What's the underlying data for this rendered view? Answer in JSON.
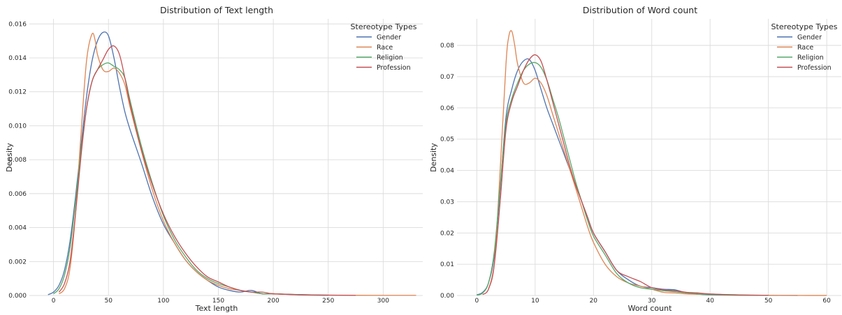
{
  "chart_data": [
    {
      "type": "line",
      "title": "Distribution of Text length",
      "xlabel": "Text length",
      "ylabel": "Density",
      "xlim": [
        -22,
        336
      ],
      "ylim": [
        0,
        0.0163
      ],
      "xticks": [
        0,
        50,
        100,
        150,
        200,
        250,
        300
      ],
      "xtick_labels": [
        "0",
        "50",
        "100",
        "150",
        "200",
        "250",
        "300"
      ],
      "yticks": [
        0,
        0.002,
        0.004,
        0.006,
        0.008,
        0.01,
        0.012,
        0.014,
        0.016
      ],
      "ytick_labels": [
        "0.000",
        "0.002",
        "0.004",
        "0.006",
        "0.008",
        "0.010",
        "0.012",
        "0.014",
        "0.016"
      ],
      "grid": true,
      "legend": {
        "title": "Stereotype Types",
        "placement": "top-right"
      },
      "series": [
        {
          "name": "Gender",
          "color": "#4c72b0",
          "x": [
            -5,
            0,
            5,
            10,
            15,
            20,
            25,
            30,
            35,
            40,
            45,
            50,
            55,
            60,
            65,
            70,
            80,
            90,
            100,
            110,
            120,
            130,
            140,
            150,
            160,
            170,
            180,
            190,
            200,
            225,
            250
          ],
          "y": [
            5e-05,
            0.0002,
            0.0006,
            0.0015,
            0.0032,
            0.0058,
            0.0088,
            0.0117,
            0.0138,
            0.015,
            0.0155,
            0.0153,
            0.014,
            0.0123,
            0.0108,
            0.0097,
            0.0078,
            0.0058,
            0.0042,
            0.0031,
            0.0021,
            0.0014,
            0.0009,
            0.0005,
            0.0003,
            0.0002,
            0.0003,
            0.0001,
            0.0001,
            3e-05,
            1e-05
          ]
        },
        {
          "name": "Race",
          "color": "#dd8452",
          "x": [
            5,
            10,
            15,
            20,
            25,
            30,
            35,
            38,
            40,
            45,
            50,
            55,
            60,
            65,
            70,
            80,
            90,
            100,
            110,
            120,
            130,
            140,
            150,
            160,
            170,
            180,
            190,
            200,
            225,
            250,
            300,
            330
          ],
          "y": [
            0.0001,
            0.0004,
            0.0016,
            0.0048,
            0.0095,
            0.0138,
            0.0154,
            0.015,
            0.0142,
            0.0133,
            0.0132,
            0.0134,
            0.0131,
            0.0124,
            0.011,
            0.0085,
            0.0062,
            0.0044,
            0.0031,
            0.0021,
            0.0014,
            0.0009,
            0.0006,
            0.0004,
            0.0003,
            0.0002,
            0.0001,
            0.0001,
            4e-05,
            2e-05,
            1e-05,
            1e-05
          ]
        },
        {
          "name": "Religion",
          "color": "#55a868",
          "x": [
            0,
            5,
            10,
            15,
            20,
            25,
            30,
            35,
            40,
            45,
            50,
            55,
            60,
            65,
            70,
            80,
            90,
            100,
            110,
            120,
            130,
            140,
            150,
            160,
            170,
            180,
            190,
            200,
            225,
            250
          ],
          "y": [
            0.0001,
            0.0004,
            0.0012,
            0.0028,
            0.0055,
            0.0085,
            0.011,
            0.0126,
            0.0133,
            0.0136,
            0.0137,
            0.0135,
            0.0133,
            0.0128,
            0.0114,
            0.0088,
            0.0066,
            0.0047,
            0.0033,
            0.0023,
            0.0015,
            0.001,
            0.0007,
            0.0005,
            0.0003,
            0.0002,
            0.0001,
            0.0001,
            5e-05,
            2e-05
          ]
        },
        {
          "name": "Profession",
          "color": "#c44e52",
          "x": [
            5,
            10,
            15,
            20,
            25,
            30,
            35,
            40,
            45,
            50,
            55,
            60,
            65,
            70,
            80,
            90,
            100,
            110,
            120,
            130,
            140,
            150,
            160,
            170,
            180,
            190,
            200,
            225,
            250,
            275
          ],
          "y": [
            0.0002,
            0.0007,
            0.002,
            0.0048,
            0.0082,
            0.011,
            0.0126,
            0.0133,
            0.0139,
            0.0145,
            0.0147,
            0.0142,
            0.0128,
            0.0112,
            0.0086,
            0.0065,
            0.0048,
            0.0035,
            0.0025,
            0.0017,
            0.0011,
            0.0008,
            0.0005,
            0.0003,
            0.0002,
            0.0002,
            0.0001,
            5e-05,
            2e-05,
            1e-05
          ]
        }
      ]
    },
    {
      "type": "line",
      "title": "Distribution of Word count",
      "xlabel": "Word count",
      "ylabel": "Density",
      "xlim": [
        -3.4,
        62.5
      ],
      "ylim": [
        0,
        0.0885
      ],
      "xticks": [
        0,
        10,
        20,
        30,
        40,
        50,
        60
      ],
      "xtick_labels": [
        "0",
        "10",
        "20",
        "30",
        "40",
        "50",
        "60"
      ],
      "yticks": [
        0,
        0.01,
        0.02,
        0.03,
        0.04,
        0.05,
        0.06,
        0.07,
        0.08
      ],
      "ytick_labels": [
        "0.00",
        "0.01",
        "0.02",
        "0.03",
        "0.04",
        "0.05",
        "0.06",
        "0.07",
        "0.08"
      ],
      "grid": true,
      "legend": {
        "title": "Stereotype Types",
        "placement": "top-right"
      },
      "series": [
        {
          "name": "Gender",
          "color": "#4c72b0",
          "x": [
            0,
            1,
            2,
            3,
            4,
            5,
            6,
            7,
            8,
            9,
            10,
            11,
            12,
            13,
            14,
            15,
            16,
            17,
            18,
            19,
            20,
            22,
            24,
            26,
            28,
            30,
            32,
            34,
            36,
            38,
            40,
            45,
            50,
            55
          ],
          "y": [
            0.0002,
            0.001,
            0.004,
            0.013,
            0.034,
            0.057,
            0.066,
            0.072,
            0.075,
            0.0755,
            0.072,
            0.066,
            0.06,
            0.055,
            0.05,
            0.045,
            0.04,
            0.035,
            0.03,
            0.025,
            0.02,
            0.014,
            0.008,
            0.005,
            0.003,
            0.0025,
            0.002,
            0.0018,
            0.0008,
            0.0004,
            0.0002,
            0.0001,
            5e-05,
            1e-05
          ]
        },
        {
          "name": "Race",
          "color": "#dd8452",
          "x": [
            2,
            3,
            4,
            5,
            5.5,
            6,
            6.5,
            7,
            8,
            9,
            10,
            11,
            12,
            13,
            14,
            15,
            16,
            17,
            18,
            19,
            20,
            22,
            24,
            26,
            28,
            30,
            32,
            34,
            36,
            38,
            40,
            45,
            50,
            55,
            60
          ],
          "y": [
            0.002,
            0.01,
            0.04,
            0.074,
            0.083,
            0.0845,
            0.08,
            0.074,
            0.068,
            0.068,
            0.0695,
            0.068,
            0.064,
            0.058,
            0.052,
            0.046,
            0.04,
            0.034,
            0.028,
            0.022,
            0.017,
            0.01,
            0.006,
            0.004,
            0.003,
            0.002,
            0.001,
            0.0008,
            0.0005,
            0.0004,
            0.0003,
            0.0001,
            5e-05,
            2e-05,
            1e-05
          ]
        },
        {
          "name": "Religion",
          "color": "#55a868",
          "x": [
            0,
            1,
            2,
            3,
            4,
            5,
            6,
            7,
            8,
            9,
            10,
            11,
            12,
            13,
            14,
            15,
            16,
            17,
            18,
            19,
            20,
            22,
            24,
            26,
            28,
            30,
            32,
            34,
            36,
            38,
            40,
            45,
            50
          ],
          "y": [
            0.0001,
            0.0008,
            0.004,
            0.014,
            0.035,
            0.055,
            0.063,
            0.068,
            0.072,
            0.074,
            0.0745,
            0.073,
            0.069,
            0.063,
            0.057,
            0.05,
            0.043,
            0.036,
            0.03,
            0.024,
            0.019,
            0.013,
            0.007,
            0.004,
            0.0025,
            0.002,
            0.0015,
            0.0012,
            0.0008,
            0.0005,
            0.0003,
            0.0001,
            3e-05
          ]
        },
        {
          "name": "Profession",
          "color": "#c44e52",
          "x": [
            1,
            2,
            3,
            4,
            5,
            6,
            7,
            8,
            9,
            10,
            11,
            12,
            13,
            14,
            15,
            16,
            17,
            18,
            19,
            20,
            22,
            24,
            26,
            28,
            30,
            32,
            34,
            36,
            38,
            40,
            45,
            50
          ],
          "y": [
            0.0003,
            0.002,
            0.01,
            0.03,
            0.053,
            0.062,
            0.067,
            0.072,
            0.0755,
            0.077,
            0.075,
            0.069,
            0.062,
            0.055,
            0.048,
            0.041,
            0.035,
            0.03,
            0.025,
            0.02,
            0.014,
            0.008,
            0.006,
            0.0045,
            0.0025,
            0.0018,
            0.0015,
            0.001,
            0.0008,
            0.0005,
            0.0002,
            5e-05
          ]
        }
      ]
    }
  ]
}
